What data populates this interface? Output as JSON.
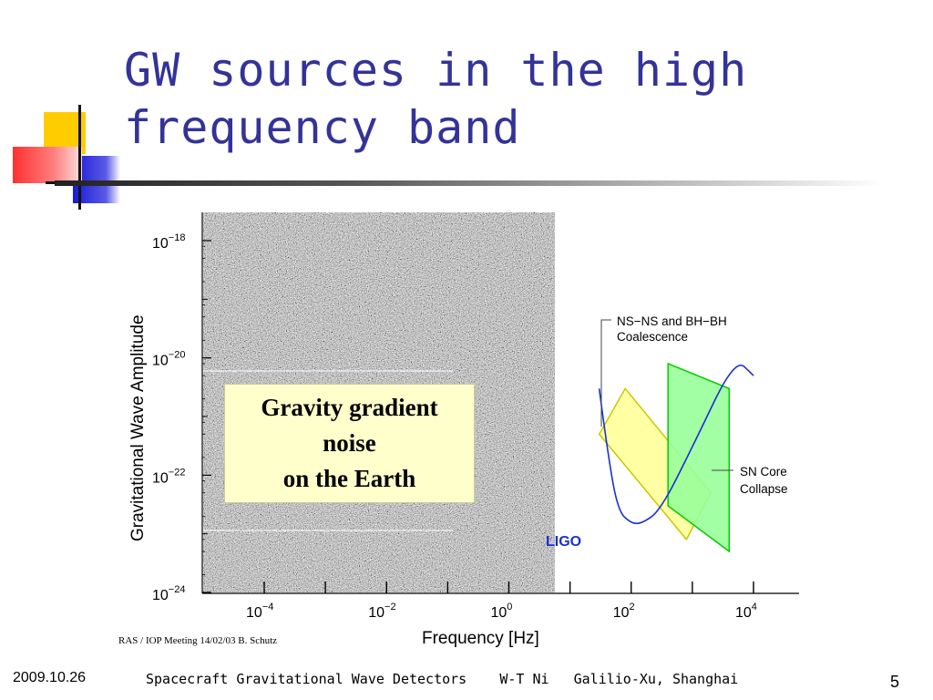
{
  "slide": {
    "title": "GW sources in the high frequency band",
    "credit": "RAS / IOP Meeting 14/02/03 B. Schutz",
    "callout": [
      "Gravity gradient",
      "noise",
      "on the Earth"
    ],
    "footer": {
      "date": "2009.10.26",
      "text": "Spacecraft Gravitational Wave Detectors    W-T Ni   Galilio-Xu, Shanghai",
      "page": "5"
    }
  },
  "chart_data": {
    "type": "line",
    "xlabel": "Frequency  [Hz]",
    "ylabel": "Gravitational Wave Amplitude",
    "xscale": "log",
    "yscale": "log",
    "xlim": [
      1e-05,
      100000
    ],
    "ylim": [
      1e-24,
      1e-18
    ],
    "xticks": [
      {
        "value": 0.0001,
        "base": "10",
        "exp": "−4"
      },
      {
        "value": 0.01,
        "base": "10",
        "exp": "−2"
      },
      {
        "value": 1,
        "base": "10",
        "exp": "0"
      },
      {
        "value": 100,
        "base": "10",
        "exp": "2"
      },
      {
        "value": 10000,
        "base": "10",
        "exp": "4"
      }
    ],
    "yticks": [
      {
        "value": 1e-18,
        "base": "10",
        "exp": "−18"
      },
      {
        "value": 1e-20,
        "base": "10",
        "exp": "−20"
      },
      {
        "value": 1e-22,
        "base": "10",
        "exp": "−22"
      },
      {
        "value": 1e-24,
        "base": "10",
        "exp": "−24"
      }
    ],
    "series": [
      {
        "name": "LIGO",
        "color": "#1a2fd6",
        "points": [
          [
            30,
            3e-21
          ],
          [
            40,
            3e-22
          ],
          [
            60,
            2.5e-23
          ],
          [
            100,
            1.5e-23
          ],
          [
            150,
            1.5e-23
          ],
          [
            300,
            2.5e-23
          ],
          [
            1000,
            3e-22
          ],
          [
            5000,
            1e-20
          ],
          [
            10000,
            5e-21
          ]
        ]
      }
    ],
    "regions": [
      {
        "name": "NS−NS and BH−BH Coalescence",
        "label_lines": [
          "NS−NS and BH−BH",
          "Coalescence"
        ],
        "fill": "#ffff99",
        "stroke": "#c8c800",
        "corners": [
          [
            30,
            5e-22
          ],
          [
            80,
            3e-21
          ],
          [
            2000,
            5e-23
          ],
          [
            800,
            8e-24
          ]
        ]
      },
      {
        "name": "SN Core Collapse",
        "label_lines": [
          "SN Core",
          "Collapse"
        ],
        "fill": "#99ff99",
        "stroke": "#00cc00",
        "corners": [
          [
            400,
            8e-21
          ],
          [
            4000,
            3e-21
          ],
          [
            4000,
            5e-24
          ],
          [
            400,
            3e-23
          ]
        ]
      }
    ],
    "noise_wall": {
      "name": "Gravity gradient noise on the Earth",
      "texture": "grey speckle"
    }
  }
}
